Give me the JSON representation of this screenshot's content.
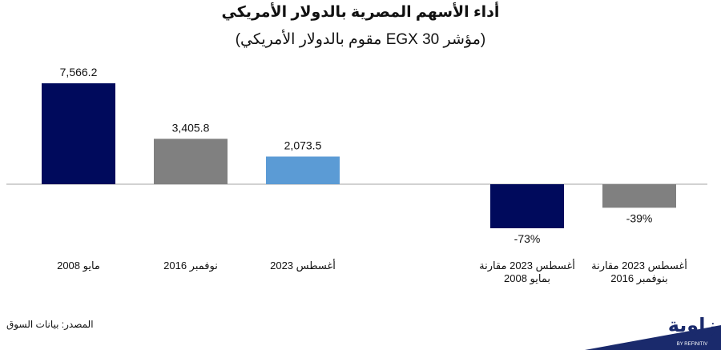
{
  "chart_data": {
    "type": "bar",
    "title": "أداء الأسهم المصرية بالدولار الأمريكي",
    "subtitle": "(مؤشر EGX 30 مقوم بالدولار الأمريكي)",
    "xlabel": "",
    "ylabel": "",
    "grid": false,
    "categories": [
      "مايو 2008",
      "نوفمبر 2016",
      "أغسطس 2023",
      "",
      "أغسطس 2023 مقارنة\nبمايو 2008",
      "أغسطس 2023 مقارنة\nبنوفمبر 2016"
    ],
    "values": [
      7566.2,
      3405.8,
      2073.5,
      null,
      -73,
      -39
    ],
    "data_labels": [
      "7,566.2",
      "3,405.8",
      "2,073.5",
      "",
      "-73%",
      "-39%"
    ],
    "colors": [
      "#000a5c",
      "#808080",
      "#5b9bd5",
      "",
      "#000a5c",
      "#808080"
    ]
  },
  "source": "المصدر: بيانات السوق",
  "logo": {
    "text": "زاوية",
    "tagline": "BY REFINITIV",
    "color": "#1a2a6c"
  }
}
